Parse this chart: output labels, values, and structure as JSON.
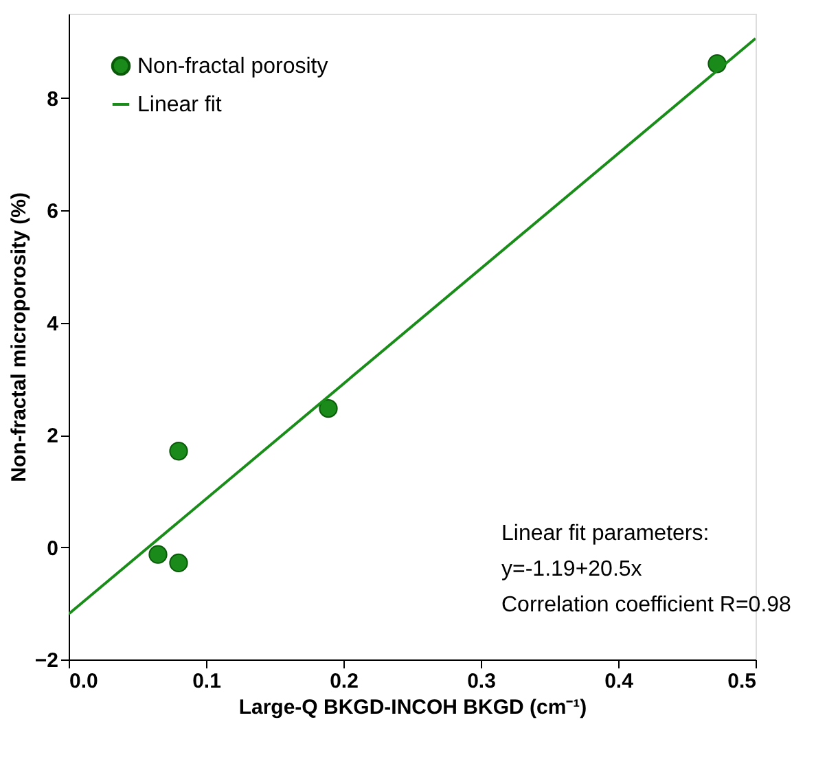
{
  "chart_data": {
    "type": "scatter",
    "xlabel": "Large-Q BKGD-INCOH BKGD (cm⁻¹)",
    "ylabel": "Non-fractal microporosity (%)",
    "xlim": [
      0,
      0.5
    ],
    "ylim": [
      -2,
      9.5
    ],
    "xticks": [
      {
        "value": 0,
        "label": "0.0"
      },
      {
        "value": 0.1,
        "label": "0.1"
      },
      {
        "value": 0.2,
        "label": "0.2"
      },
      {
        "value": 0.3,
        "label": "0.3"
      },
      {
        "value": 0.4,
        "label": "0.4"
      },
      {
        "value": 0.5,
        "label": "0.5"
      }
    ],
    "yticks": [
      -2,
      0,
      2,
      4,
      6,
      8
    ],
    "series": [
      {
        "name": "Non-fractal porosity",
        "color": "#1a8a1a",
        "marker": "circle",
        "x": [
          0.065,
          0.08,
          0.08,
          0.189,
          0.472
        ],
        "values": [
          -0.13,
          -0.28,
          1.71,
          2.47,
          8.61
        ]
      },
      {
        "name": "Linear fit",
        "type": "line",
        "color": "#1a8c1a",
        "line_style": "solid",
        "x": [
          0,
          0.5
        ],
        "values": [
          -1.19,
          9.06
        ]
      }
    ],
    "annotations": [
      "Linear fit parameters:",
      "y=-1.19+20.5x",
      "Correlation coefficient R=0.98"
    ],
    "legend": "top left",
    "grid": false
  }
}
